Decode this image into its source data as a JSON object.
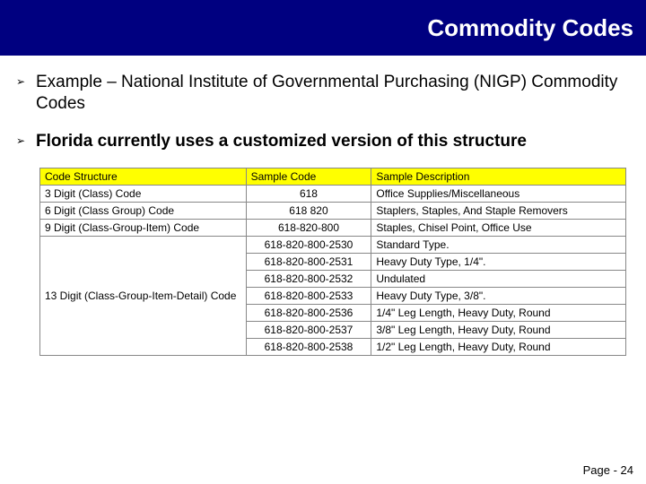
{
  "title": "Commodity Codes",
  "bullets": [
    {
      "marker": "➢",
      "text": "Example – National Institute of Governmental Purchasing (NIGP) Commodity Codes",
      "bold": false
    },
    {
      "marker": "➢",
      "text": "Florida currently uses a customized version of this structure",
      "bold": true
    }
  ],
  "table": {
    "headers": [
      "Code Structure",
      "Sample Code",
      "Sample Description"
    ],
    "col_widths": [
      "230px",
      "140px",
      "284px"
    ],
    "header_bg": "#ffff00",
    "border_color": "#888888",
    "rows": [
      {
        "structure": "3 Digit (Class) Code",
        "span": 1,
        "codes": [
          "618"
        ],
        "descs": [
          "Office Supplies/Miscellaneous"
        ]
      },
      {
        "structure": "6 Digit (Class Group) Code",
        "span": 1,
        "codes": [
          "618 820"
        ],
        "descs": [
          "Staplers, Staples, And Staple Removers"
        ]
      },
      {
        "structure": "9 Digit (Class-Group-Item) Code",
        "span": 1,
        "codes": [
          "618-820-800"
        ],
        "descs": [
          "Staples, Chisel Point, Office Use"
        ]
      },
      {
        "structure": "13 Digit (Class-Group-Item-Detail) Code",
        "span": 7,
        "codes": [
          "618-820-800-2530",
          "618-820-800-2531",
          "618-820-800-2532",
          "618-820-800-2533",
          "618-820-800-2536",
          "618-820-800-2537",
          "618-820-800-2538"
        ],
        "descs": [
          "Standard Type.",
          "Heavy Duty Type, 1/4\".",
          "Undulated",
          "Heavy Duty Type, 3/8\".",
          "1/4\" Leg Length, Heavy Duty, Round",
          "3/8\" Leg Length, Heavy Duty, Round",
          "1/2\" Leg Length, Heavy Duty, Round"
        ]
      }
    ]
  },
  "footer": "Page - 24"
}
